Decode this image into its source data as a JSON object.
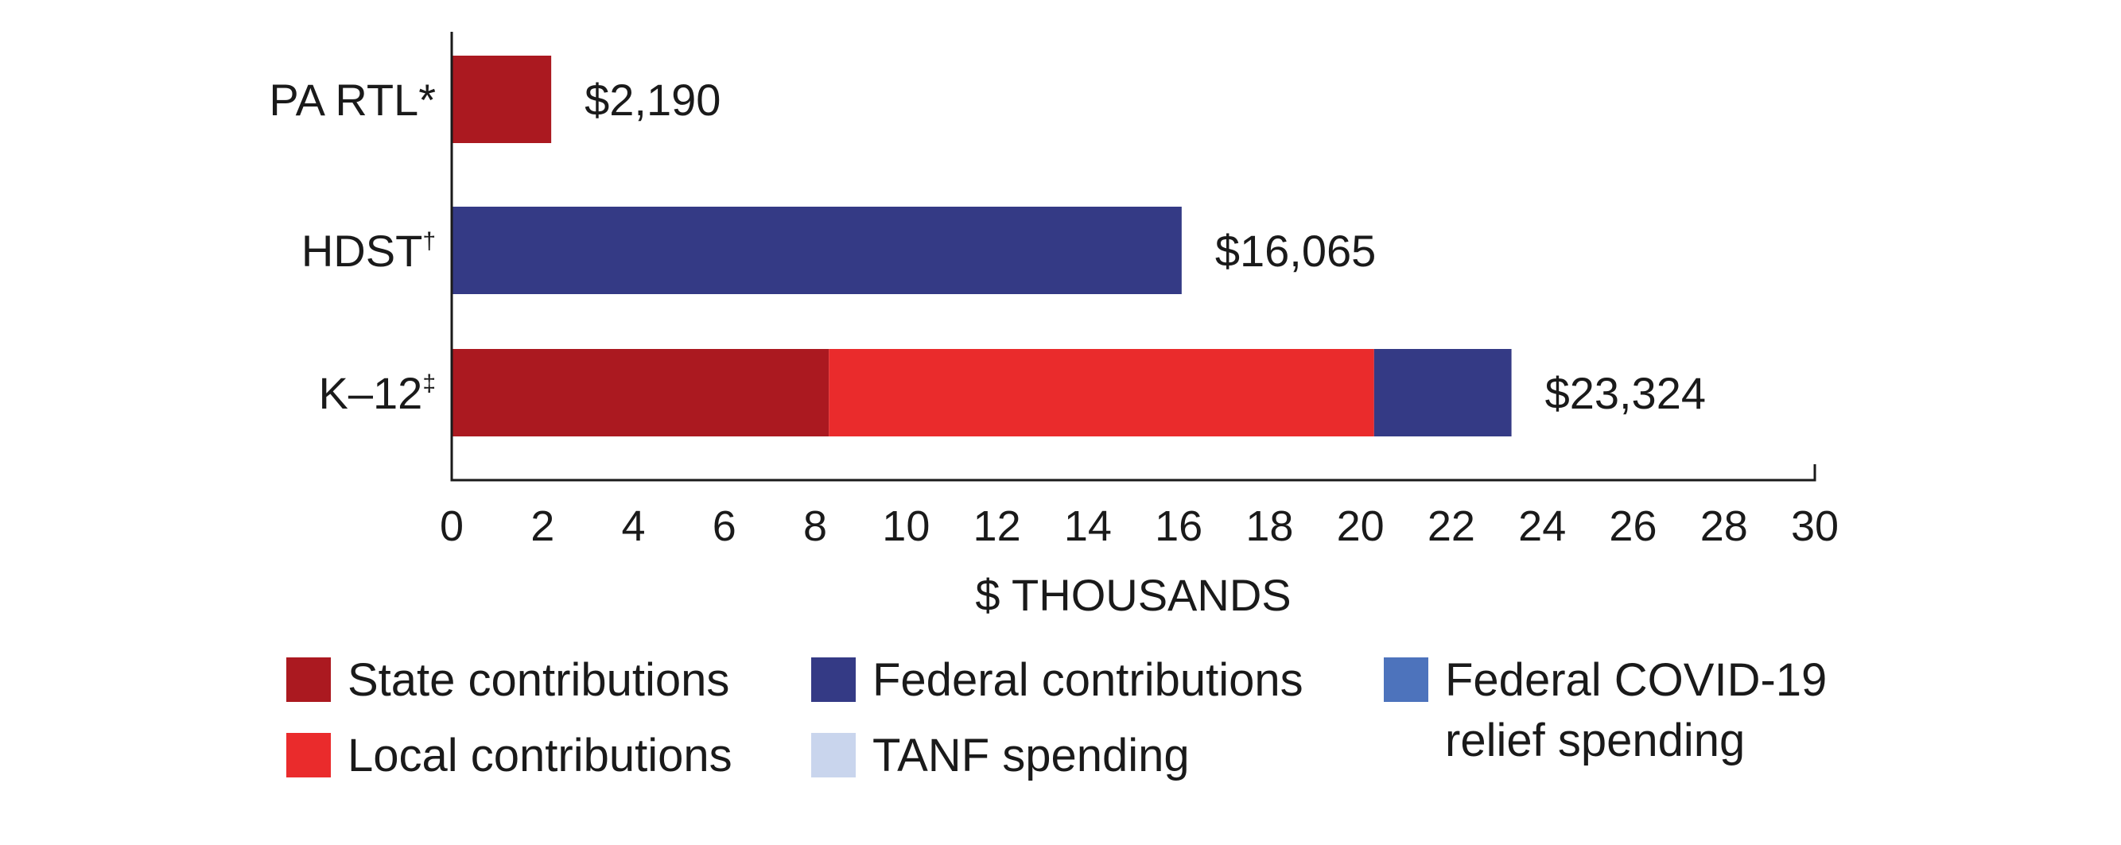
{
  "chart_data": {
    "type": "bar",
    "orientation": "horizontal",
    "stacked": true,
    "xlabel": "$ THOUSANDS",
    "xlim": [
      0,
      30
    ],
    "xticks": [
      "0",
      "2",
      "4",
      "6",
      "8",
      "10",
      "12",
      "14",
      "16",
      "18",
      "20",
      "22",
      "24",
      "26",
      "28",
      "30"
    ],
    "grid": false,
    "categories": [
      {
        "name": "PA RTL",
        "mark": "*",
        "total_label": "$2,190"
      },
      {
        "name": "HDST",
        "mark": "†",
        "total_label": "$16,065"
      },
      {
        "name": "K–12",
        "mark": "‡",
        "total_label": "$23,324"
      }
    ],
    "series": [
      {
        "name": "State contributions",
        "color": "#ab1920",
        "values": [
          2.19,
          0,
          8.3
        ]
      },
      {
        "name": "Local contributions",
        "color": "#ea2b2c",
        "values": [
          0,
          0,
          12.0
        ]
      },
      {
        "name": "Federal contributions",
        "color": "#343a85",
        "values": [
          0,
          16.065,
          3.024
        ]
      },
      {
        "name": "TANF spending",
        "color": "#c9d5ed",
        "values": [
          0,
          0,
          0
        ]
      },
      {
        "name": "Federal COVID-19 relief spending",
        "color": "#4d73bc",
        "values": [
          0,
          0,
          0
        ]
      }
    ],
    "legend": {
      "position": "bottom",
      "items": [
        {
          "label": "State contributions",
          "color": "#ab1920"
        },
        {
          "label": "Federal contributions",
          "color": "#343a85"
        },
        {
          "label": "Federal COVID-19 relief spending",
          "color": "#4d73bc"
        },
        {
          "label": "Local contributions",
          "color": "#ea2b2c"
        },
        {
          "label": "TANF spending",
          "color": "#c9d5ed"
        }
      ]
    }
  }
}
